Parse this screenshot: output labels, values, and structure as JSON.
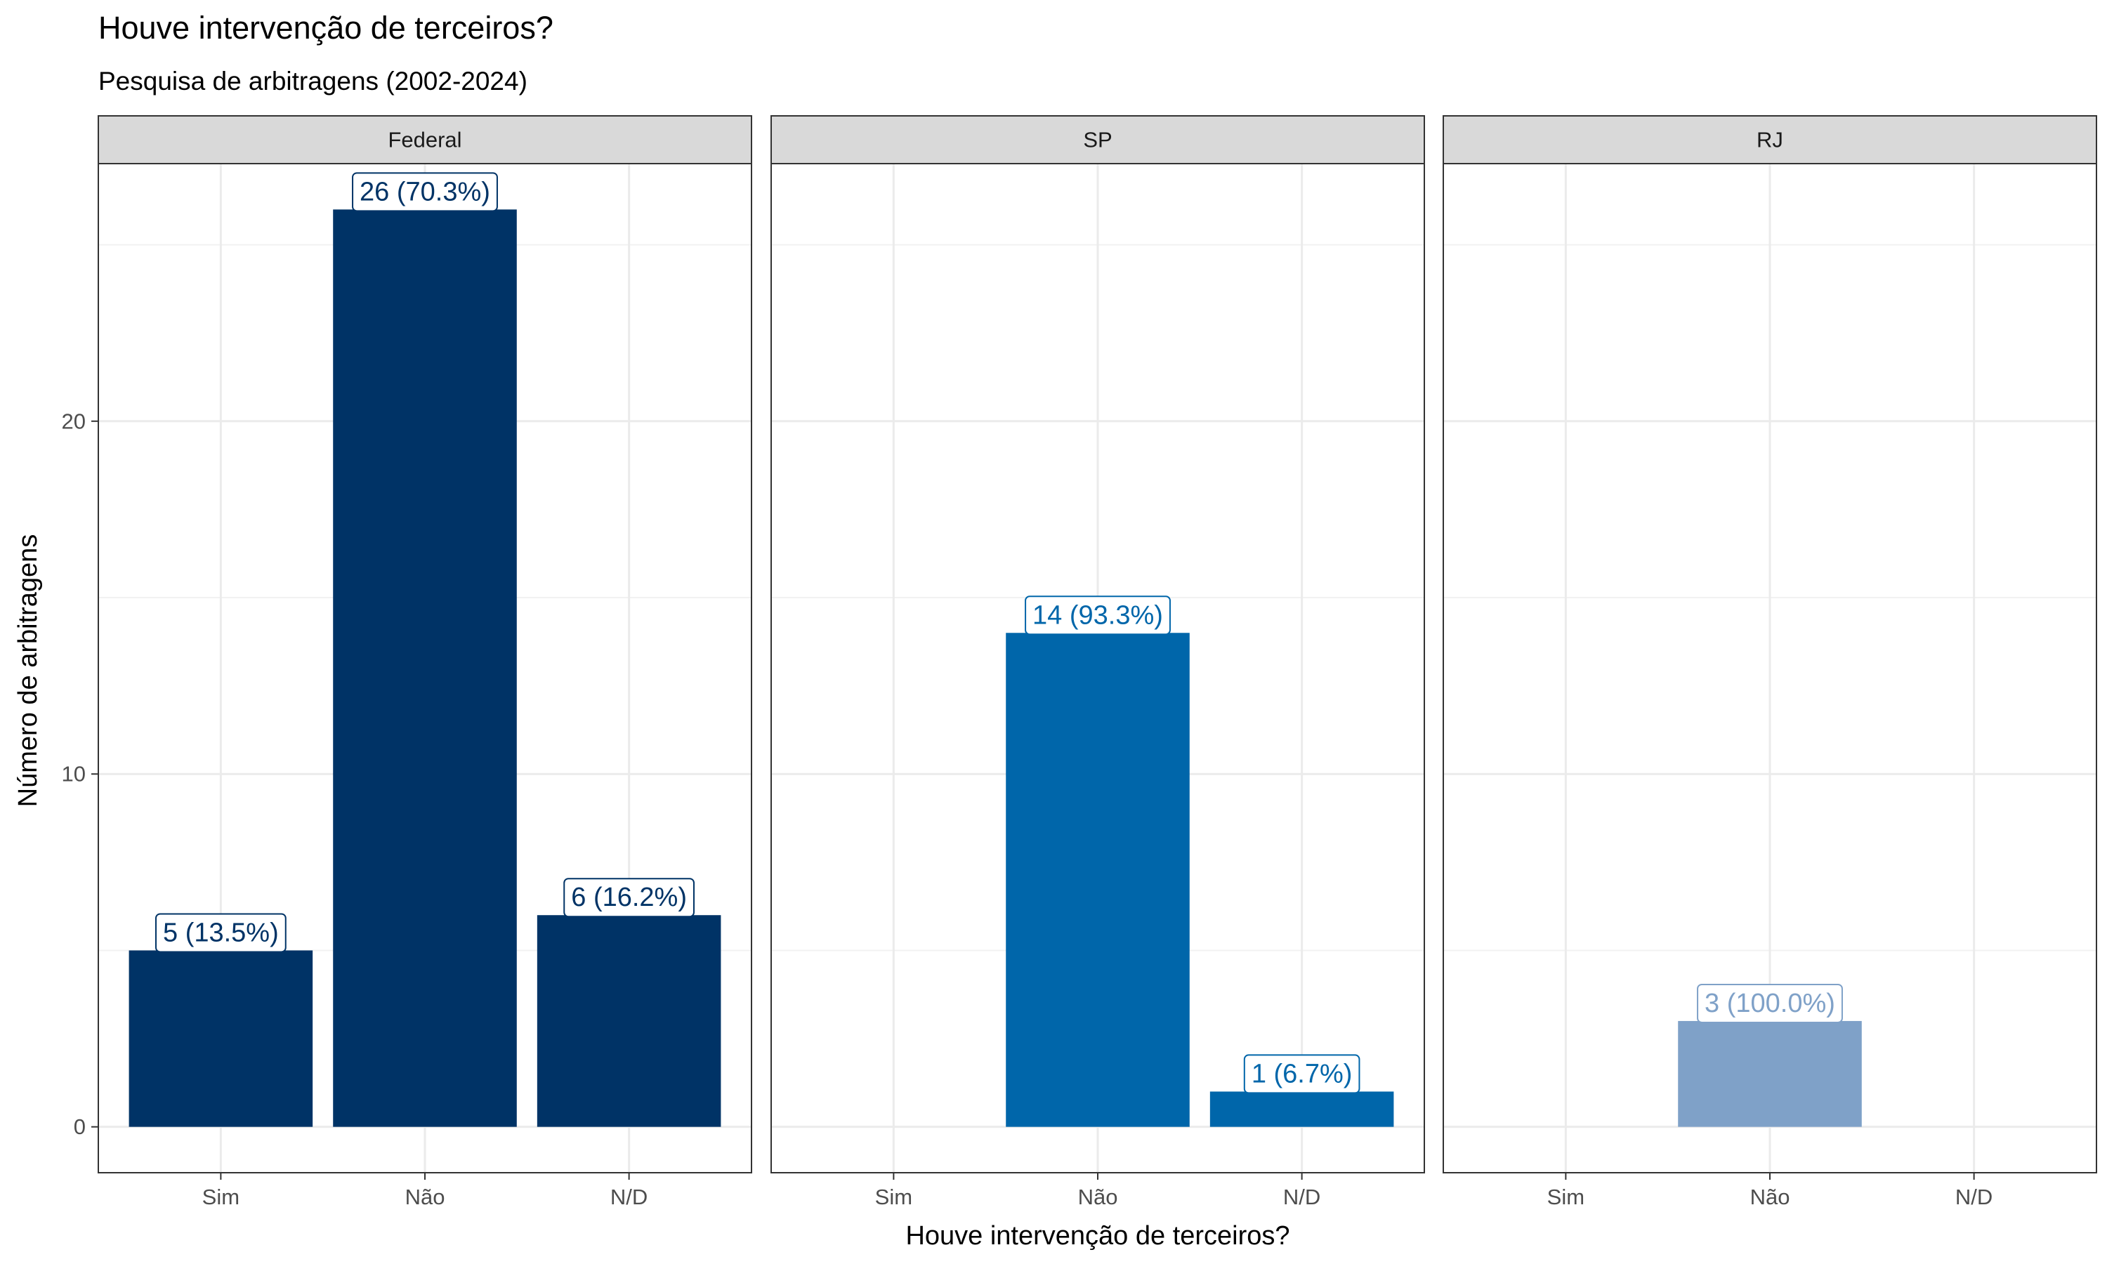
{
  "chart_data": {
    "type": "bar",
    "title": "Houve intervenção de terceiros?",
    "subtitle": "Pesquisa de arbitragens (2002-2024)",
    "xlabel": "Houve intervenção de terceiros?",
    "ylabel": "Número de arbitragens",
    "categories": [
      "Sim",
      "Não",
      "N/D"
    ],
    "ylim": [
      -1.3,
      27.3
    ],
    "yticks": [
      0,
      10,
      20
    ],
    "grid": true,
    "panels": [
      {
        "name": "Federal",
        "color": "#003366",
        "values": [
          5,
          26,
          6
        ],
        "labels": [
          "5 (13.5%)",
          "26 (70.3%)",
          "6 (16.2%)"
        ]
      },
      {
        "name": "SP",
        "color": "#0066AA",
        "values": [
          null,
          14,
          1
        ],
        "labels": [
          null,
          "14 (93.3%)",
          "1 (6.7%)"
        ]
      },
      {
        "name": "RJ",
        "color": "#7FA1C8",
        "values": [
          null,
          3,
          null
        ],
        "labels": [
          null,
          "3 (100.0%)",
          null
        ]
      }
    ]
  }
}
